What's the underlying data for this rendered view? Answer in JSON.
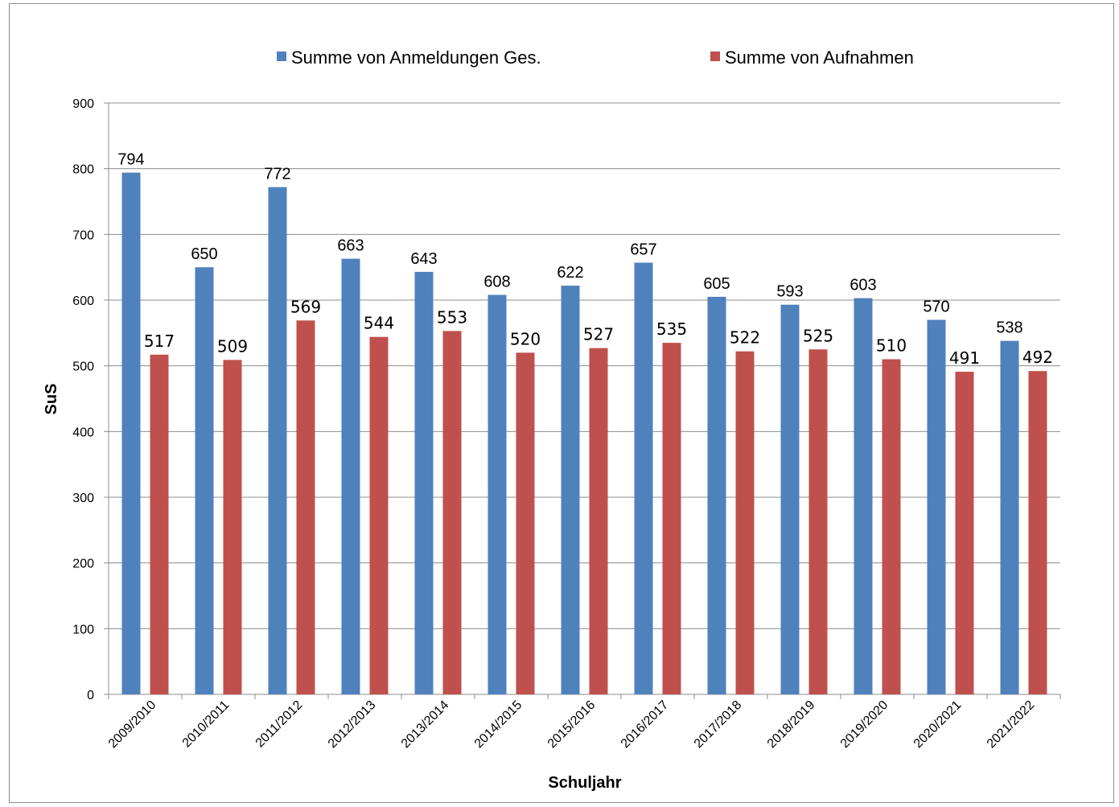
{
  "chart_data": {
    "type": "bar",
    "categories": [
      "2009/2010",
      "2010/2011",
      "2011/2012",
      "2012/2013",
      "2013/2014",
      "2014/2015",
      "2015/2016",
      "2016/2017",
      "2017/2018",
      "2018/2019",
      "2019/2020",
      "2020/2021",
      "2021/2022"
    ],
    "series": [
      {
        "name": "Summe von Anmeldungen Ges.",
        "color": "#4f81bd",
        "values": [
          794,
          650,
          772,
          663,
          643,
          608,
          622,
          657,
          605,
          593,
          603,
          570,
          538
        ]
      },
      {
        "name": "Summe von Aufnahmen",
        "color": "#c0504d",
        "values": [
          517,
          509,
          569,
          544,
          553,
          520,
          527,
          535,
          522,
          525,
          510,
          491,
          492
        ]
      }
    ],
    "xlabel": "Schuljahr",
    "ylabel": "SuS",
    "ylim": [
      0,
      900
    ],
    "yticks": [
      0,
      100,
      200,
      300,
      400,
      500,
      600,
      700,
      800,
      900
    ],
    "grid": true,
    "legend_position": "top",
    "data_labels": true
  }
}
